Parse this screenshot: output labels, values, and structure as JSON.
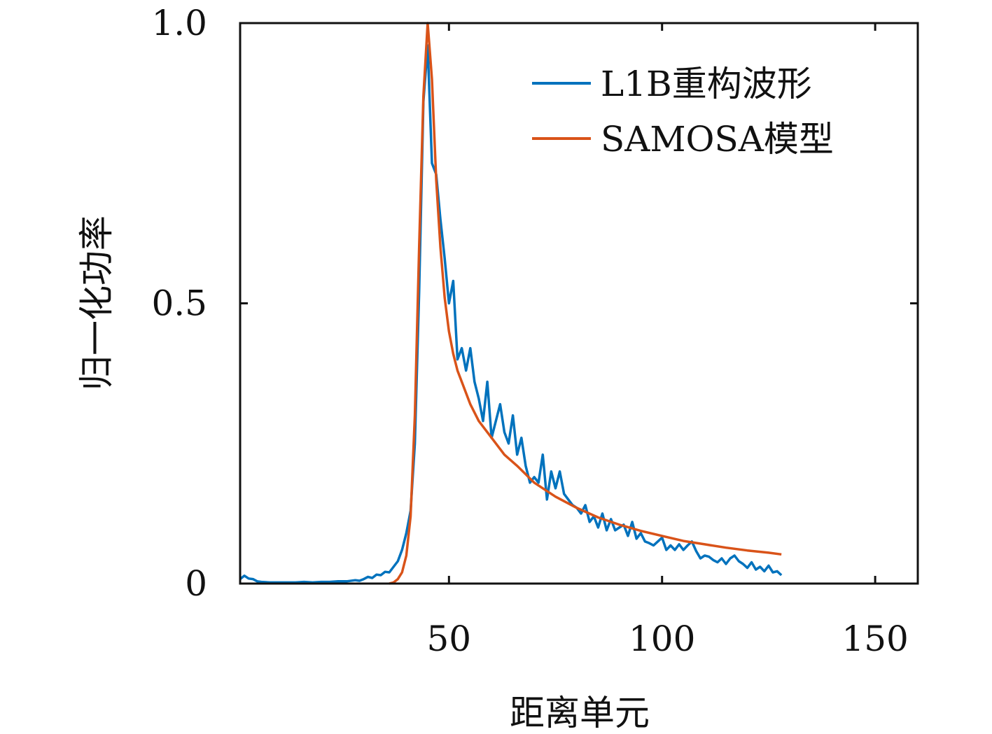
{
  "chart_data": {
    "type": "line",
    "title": "",
    "xlabel": "距离单元",
    "ylabel": "归一化功率",
    "xlim": [
      1,
      160
    ],
    "ylim": [
      0,
      1.0
    ],
    "x_ticks": [
      50,
      100,
      150
    ],
    "x_tick_labels": [
      "50",
      "100",
      "150"
    ],
    "y_ticks": [
      0,
      0.5,
      1.0
    ],
    "y_tick_labels": [
      "0",
      "0.5",
      "1.0"
    ],
    "grid": false,
    "legend_position": "top-right",
    "series": [
      {
        "name": "L1B重构波形",
        "color": "#0072BD",
        "points": [
          [
            1,
            0.008
          ],
          [
            2,
            0.014
          ],
          [
            3,
            0.009
          ],
          [
            4,
            0.008
          ],
          [
            5,
            0.004
          ],
          [
            6,
            0.003
          ],
          [
            8,
            0.002
          ],
          [
            10,
            0.002
          ],
          [
            12,
            0.002
          ],
          [
            14,
            0.002
          ],
          [
            16,
            0.003
          ],
          [
            18,
            0.002
          ],
          [
            20,
            0.003
          ],
          [
            22,
            0.003
          ],
          [
            24,
            0.004
          ],
          [
            26,
            0.004
          ],
          [
            28,
            0.006
          ],
          [
            29,
            0.005
          ],
          [
            30,
            0.008
          ],
          [
            31,
            0.012
          ],
          [
            32,
            0.01
          ],
          [
            33,
            0.016
          ],
          [
            34,
            0.015
          ],
          [
            35,
            0.021
          ],
          [
            36,
            0.02
          ],
          [
            37,
            0.03
          ],
          [
            38,
            0.04
          ],
          [
            39,
            0.06
          ],
          [
            40,
            0.09
          ],
          [
            41,
            0.13
          ],
          [
            42,
            0.25
          ],
          [
            43,
            0.52
          ],
          [
            44,
            0.86
          ],
          [
            45,
            0.96
          ],
          [
            46,
            0.75
          ],
          [
            47,
            0.73
          ],
          [
            48,
            0.65
          ],
          [
            49,
            0.58
          ],
          [
            50,
            0.5
          ],
          [
            51,
            0.54
          ],
          [
            52,
            0.4
          ],
          [
            53,
            0.42
          ],
          [
            54,
            0.38
          ],
          [
            55,
            0.42
          ],
          [
            56,
            0.36
          ],
          [
            57,
            0.33
          ],
          [
            58,
            0.29
          ],
          [
            59,
            0.36
          ],
          [
            60,
            0.26
          ],
          [
            61,
            0.29
          ],
          [
            62,
            0.32
          ],
          [
            63,
            0.27
          ],
          [
            64,
            0.25
          ],
          [
            65,
            0.3
          ],
          [
            66,
            0.23
          ],
          [
            67,
            0.26
          ],
          [
            68,
            0.21
          ],
          [
            69,
            0.18
          ],
          [
            70,
            0.19
          ],
          [
            71,
            0.18
          ],
          [
            72,
            0.23
          ],
          [
            73,
            0.15
          ],
          [
            74,
            0.2
          ],
          [
            75,
            0.17
          ],
          [
            76,
            0.2
          ],
          [
            77,
            0.16
          ],
          [
            78,
            0.15
          ],
          [
            79,
            0.14
          ],
          [
            80,
            0.135
          ],
          [
            81,
            0.125
          ],
          [
            82,
            0.14
          ],
          [
            83,
            0.11
          ],
          [
            84,
            0.12
          ],
          [
            85,
            0.1
          ],
          [
            86,
            0.125
          ],
          [
            87,
            0.095
          ],
          [
            88,
            0.115
          ],
          [
            89,
            0.095
          ],
          [
            90,
            0.1
          ],
          [
            91,
            0.105
          ],
          [
            92,
            0.085
          ],
          [
            93,
            0.11
          ],
          [
            94,
            0.08
          ],
          [
            95,
            0.09
          ],
          [
            96,
            0.075
          ],
          [
            97,
            0.072
          ],
          [
            98,
            0.068
          ],
          [
            99,
            0.075
          ],
          [
            100,
            0.082
          ],
          [
            101,
            0.06
          ],
          [
            102,
            0.068
          ],
          [
            103,
            0.06
          ],
          [
            104,
            0.07
          ],
          [
            105,
            0.06
          ],
          [
            106,
            0.068
          ],
          [
            107,
            0.075
          ],
          [
            108,
            0.058
          ],
          [
            109,
            0.045
          ],
          [
            110,
            0.05
          ],
          [
            111,
            0.048
          ],
          [
            112,
            0.042
          ],
          [
            113,
            0.038
          ],
          [
            114,
            0.045
          ],
          [
            115,
            0.035
          ],
          [
            116,
            0.045
          ],
          [
            117,
            0.05
          ],
          [
            118,
            0.04
          ],
          [
            119,
            0.035
          ],
          [
            120,
            0.028
          ],
          [
            121,
            0.038
          ],
          [
            122,
            0.025
          ],
          [
            123,
            0.03
          ],
          [
            124,
            0.022
          ],
          [
            125,
            0.032
          ],
          [
            126,
            0.02
          ],
          [
            127,
            0.022
          ],
          [
            128,
            0.015
          ]
        ]
      },
      {
        "name": "SAMOSA模型",
        "color": "#D95319",
        "points": [
          [
            36,
            0.0
          ],
          [
            37,
            0.002
          ],
          [
            38,
            0.008
          ],
          [
            39,
            0.02
          ],
          [
            40,
            0.05
          ],
          [
            41,
            0.12
          ],
          [
            42,
            0.3
          ],
          [
            43,
            0.6
          ],
          [
            44,
            0.87
          ],
          [
            45,
            1.0
          ],
          [
            46,
            0.9
          ],
          [
            47,
            0.72
          ],
          [
            48,
            0.6
          ],
          [
            49,
            0.51
          ],
          [
            50,
            0.45
          ],
          [
            51,
            0.41
          ],
          [
            52,
            0.38
          ],
          [
            53,
            0.36
          ],
          [
            55,
            0.32
          ],
          [
            57,
            0.29
          ],
          [
            60,
            0.26
          ],
          [
            63,
            0.23
          ],
          [
            66,
            0.21
          ],
          [
            70,
            0.18
          ],
          [
            75,
            0.155
          ],
          [
            80,
            0.135
          ],
          [
            85,
            0.118
          ],
          [
            90,
            0.105
          ],
          [
            95,
            0.094
          ],
          [
            100,
            0.085
          ],
          [
            105,
            0.076
          ],
          [
            110,
            0.07
          ],
          [
            115,
            0.064
          ],
          [
            120,
            0.059
          ],
          [
            125,
            0.055
          ],
          [
            128,
            0.052
          ]
        ]
      }
    ]
  }
}
